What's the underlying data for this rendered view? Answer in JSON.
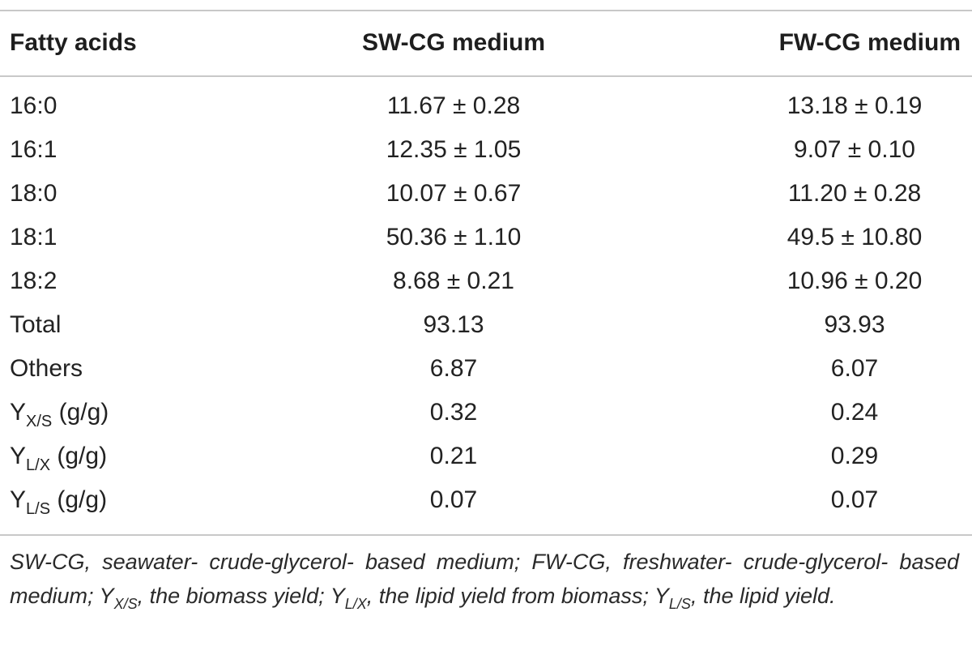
{
  "table": {
    "headers": {
      "col1": "Fatty acids",
      "col2": "SW-CG medium",
      "col3": "FW-CG medium"
    },
    "rows": [
      {
        "label": "16:0",
        "label_sub": "",
        "label_suffix": "",
        "sw": "11.67 ± 0.28",
        "fw": "13.18 ± 0.19"
      },
      {
        "label": "16:1",
        "label_sub": "",
        "label_suffix": "",
        "sw": "12.35 ± 1.05",
        "fw": "9.07 ± 0.10"
      },
      {
        "label": "18:0",
        "label_sub": "",
        "label_suffix": "",
        "sw": "10.07 ± 0.67",
        "fw": "11.20 ± 0.28"
      },
      {
        "label": "18:1",
        "label_sub": "",
        "label_suffix": "",
        "sw": "50.36 ± 1.10",
        "fw": "49.5 ± 10.80"
      },
      {
        "label": "18:2",
        "label_sub": "",
        "label_suffix": "",
        "sw": "8.68 ± 0.21",
        "fw": "10.96 ± 0.20"
      },
      {
        "label": "Total",
        "label_sub": "",
        "label_suffix": "",
        "sw": "93.13",
        "fw": "93.93"
      },
      {
        "label": "Others",
        "label_sub": "",
        "label_suffix": "",
        "sw": "6.87",
        "fw": "6.07"
      },
      {
        "label": "Y",
        "label_sub": "X/S",
        "label_suffix": " (g/g)",
        "sw": "0.32",
        "fw": "0.24"
      },
      {
        "label": "Y",
        "label_sub": "L/X",
        "label_suffix": " (g/g)",
        "sw": "0.21",
        "fw": "0.29"
      },
      {
        "label": "Y",
        "label_sub": "L/S",
        "label_suffix": " (g/g)",
        "sw": "0.07",
        "fw": "0.07"
      }
    ]
  },
  "footnote": {
    "part1": "SW-CG, seawater- crude-glycerol- based medium; FW-CG, freshwater- crude-glycerol- based medium; Y",
    "sub1": "X/S",
    "part2": ", the biomass yield; Y",
    "sub2": "L/X",
    "part3": ", the lipid yield from biomass; Y",
    "sub3": "L/S",
    "part4": ", the lipid yield."
  }
}
